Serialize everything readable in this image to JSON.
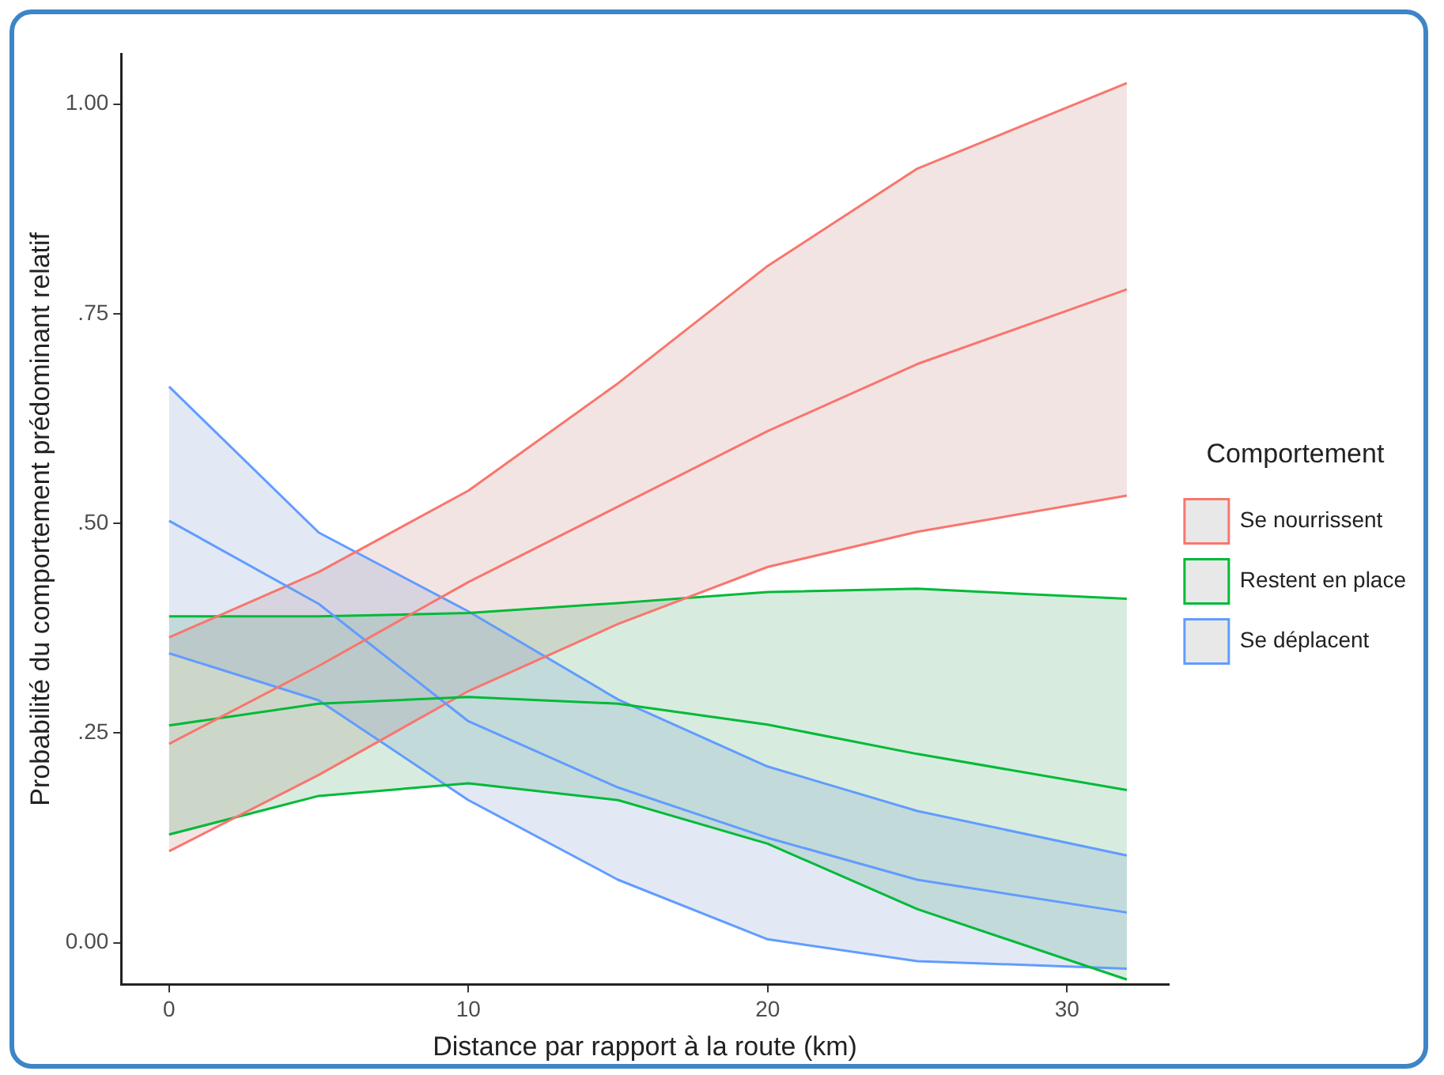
{
  "chart_data": {
    "type": "line",
    "xlabel": "Distance par rapport à la route (km)",
    "ylabel": "Probabilité du comportement prédominant relatif",
    "legend_title": "Comportement",
    "legend": "right",
    "grid": false,
    "marker": "none",
    "line_style": "solid",
    "x": [
      0,
      5,
      10,
      15,
      20,
      25,
      32
    ],
    "xlim": [
      -1.6,
      33.4
    ],
    "xticks": [
      0,
      10,
      20,
      30
    ],
    "ylim": [
      -0.05,
      1.06
    ],
    "yticks": [
      {
        "value": 0,
        "label": "0.00"
      },
      {
        "value": 0.25,
        "label": ".25"
      },
      {
        "value": 0.5,
        "label": ".50"
      },
      {
        "value": 0.75,
        "label": ".75"
      },
      {
        "value": 1,
        "label": "1.00"
      }
    ],
    "series": [
      {
        "name": "Se nourrissent",
        "color": "#f8766d",
        "values": [
          0.237,
          0.33,
          0.43,
          0.52,
          0.61,
          0.69,
          0.779
        ],
        "lower": [
          0.109,
          0.2,
          0.3,
          0.38,
          0.448,
          0.49,
          0.533
        ],
        "upper": [
          0.364,
          0.442,
          0.539,
          0.667,
          0.807,
          0.923,
          1.025
        ]
      },
      {
        "name": "Restent en place",
        "color": "#00ba38",
        "values": [
          0.259,
          0.285,
          0.293,
          0.285,
          0.26,
          0.225,
          0.182
        ],
        "lower": [
          0.129,
          0.175,
          0.19,
          0.17,
          0.118,
          0.04,
          -0.044
        ],
        "upper": [
          0.389,
          0.389,
          0.393,
          0.405,
          0.418,
          0.422,
          0.41
        ]
      },
      {
        "name": "Se déplacent",
        "color": "#619cff",
        "values": [
          0.503,
          0.404,
          0.264,
          0.185,
          0.125,
          0.075,
          0.036
        ],
        "lower": [
          0.345,
          0.289,
          0.17,
          0.075,
          0.004,
          -0.022,
          -0.031
        ],
        "upper": [
          0.663,
          0.489,
          0.395,
          0.29,
          0.21,
          0.157,
          0.104
        ]
      },
      {
        "color": "#f8766d",
        "values": [
          0.109,
          0.2,
          0.3,
          0.38,
          0.448,
          0.49,
          0.533
        ]
      },
      {
        "color": "#f8766d",
        "values": [
          0.364,
          0.442,
          0.539,
          0.667,
          0.807,
          0.923,
          1.025
        ]
      },
      {
        "color": "#00ba38",
        "values": [
          0.129,
          0.175,
          0.19,
          0.17,
          0.118,
          0.04,
          -0.044
        ]
      },
      {
        "color": "#00ba38",
        "values": [
          0.389,
          0.389,
          0.393,
          0.405,
          0.418,
          0.422,
          0.41
        ]
      },
      {
        "color": "#619cff",
        "values": [
          0.345,
          0.289,
          0.17,
          0.075,
          0.004,
          -0.022,
          -0.031
        ]
      },
      {
        "color": "#619cff",
        "values": [
          0.663,
          0.489,
          0.395,
          0.29,
          0.21,
          0.157,
          0.104
        ]
      }
    ]
  }
}
